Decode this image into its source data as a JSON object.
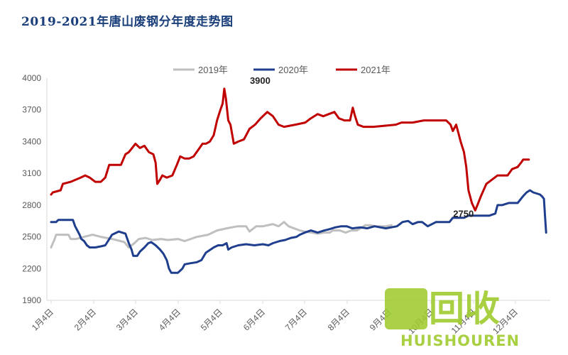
{
  "chart_data": {
    "type": "line",
    "title": "2019-2021年唐山废钢分年度走势图",
    "ylim": [
      1900,
      4000
    ],
    "yticks": [
      1900,
      2200,
      2500,
      2800,
      3100,
      3400,
      3700,
      4000
    ],
    "x_dates": [
      "1月4日",
      "2月4日",
      "3月4日",
      "4月4日",
      "5月4日",
      "6月4日",
      "7月4日",
      "8月4日",
      "9月4日",
      "10月4日",
      "11月4日",
      "12月4日"
    ],
    "legend_position": "top",
    "grid": false,
    "series": [
      {
        "name": "2019年",
        "color": "#bfbfbf",
        "points": [
          [
            1,
            2400
          ],
          [
            4,
            2440
          ],
          [
            6,
            2460
          ],
          [
            10,
            2520
          ],
          [
            20,
            2520
          ],
          [
            32,
            2520
          ],
          [
            36,
            2480
          ],
          [
            46,
            2480
          ],
          [
            60,
            2500
          ],
          [
            75,
            2520
          ],
          [
            90,
            2500
          ],
          [
            110,
            2480
          ],
          [
            125,
            2460
          ],
          [
            132,
            2450
          ],
          [
            140,
            2400
          ],
          [
            150,
            2440
          ],
          [
            158,
            2480
          ],
          [
            170,
            2490
          ],
          [
            182,
            2470
          ],
          [
            198,
            2480
          ],
          [
            210,
            2470
          ],
          [
            228,
            2480
          ],
          [
            240,
            2460
          ],
          [
            262,
            2500
          ],
          [
            282,
            2520
          ],
          [
            298,
            2560
          ],
          [
            315,
            2580
          ],
          [
            335,
            2600
          ],
          [
            350,
            2600
          ],
          [
            356,
            2550
          ],
          [
            368,
            2600
          ],
          [
            380,
            2600
          ],
          [
            398,
            2620
          ],
          [
            408,
            2600
          ],
          [
            418,
            2640
          ],
          [
            426,
            2600
          ],
          [
            446,
            2560
          ],
          [
            454,
            2550
          ],
          [
            468,
            2540
          ],
          [
            478,
            2530
          ],
          [
            490,
            2540
          ],
          [
            500,
            2540
          ],
          [
            505,
            2560
          ],
          [
            518,
            2560
          ],
          [
            528,
            2540
          ],
          [
            538,
            2560
          ],
          [
            548,
            2560
          ],
          [
            558,
            2590
          ],
          [
            563,
            2610
          ],
          [
            572,
            2610
          ],
          [
            582,
            2600
          ],
          [
            600,
            2600
          ],
          [
            610,
            2610
          ]
        ]
      },
      {
        "name": "2020年",
        "color": "#1f3f8e",
        "points": [
          [
            1,
            2640
          ],
          [
            10,
            2640
          ],
          [
            14,
            2660
          ],
          [
            32,
            2660
          ],
          [
            40,
            2660
          ],
          [
            44,
            2600
          ],
          [
            48,
            2560
          ],
          [
            52,
            2520
          ],
          [
            55,
            2480
          ],
          [
            60,
            2460
          ],
          [
            65,
            2420
          ],
          [
            70,
            2400
          ],
          [
            80,
            2400
          ],
          [
            90,
            2410
          ],
          [
            98,
            2420
          ],
          [
            110,
            2520
          ],
          [
            122,
            2550
          ],
          [
            134,
            2530
          ],
          [
            140,
            2440
          ],
          [
            145,
            2380
          ],
          [
            148,
            2320
          ],
          [
            155,
            2320
          ],
          [
            160,
            2360
          ],
          [
            168,
            2400
          ],
          [
            175,
            2440
          ],
          [
            180,
            2450
          ],
          [
            188,
            2420
          ],
          [
            196,
            2380
          ],
          [
            202,
            2340
          ],
          [
            208,
            2280
          ],
          [
            212,
            2200
          ],
          [
            216,
            2160
          ],
          [
            228,
            2160
          ],
          [
            236,
            2200
          ],
          [
            240,
            2240
          ],
          [
            250,
            2250
          ],
          [
            262,
            2260
          ],
          [
            270,
            2280
          ],
          [
            278,
            2350
          ],
          [
            292,
            2400
          ],
          [
            300,
            2420
          ],
          [
            308,
            2420
          ],
          [
            315,
            2440
          ],
          [
            318,
            2380
          ],
          [
            324,
            2400
          ],
          [
            336,
            2420
          ],
          [
            350,
            2430
          ],
          [
            365,
            2420
          ],
          [
            380,
            2430
          ],
          [
            390,
            2420
          ],
          [
            398,
            2440
          ],
          [
            410,
            2460
          ],
          [
            420,
            2470
          ],
          [
            430,
            2490
          ],
          [
            440,
            2500
          ],
          [
            446,
            2520
          ],
          [
            455,
            2540
          ],
          [
            466,
            2560
          ],
          [
            478,
            2540
          ],
          [
            490,
            2560
          ],
          [
            498,
            2570
          ],
          [
            510,
            2590
          ],
          [
            520,
            2600
          ],
          [
            530,
            2600
          ],
          [
            540,
            2580
          ],
          [
            555,
            2590
          ],
          [
            567,
            2580
          ],
          [
            580,
            2600
          ],
          [
            600,
            2580
          ],
          [
            620,
            2600
          ],
          [
            630,
            2640
          ],
          [
            640,
            2650
          ],
          [
            648,
            2620
          ],
          [
            658,
            2640
          ],
          [
            665,
            2640
          ],
          [
            675,
            2600
          ],
          [
            690,
            2640
          ],
          [
            700,
            2640
          ],
          [
            714,
            2640
          ],
          [
            720,
            2680
          ],
          [
            730,
            2680
          ],
          [
            740,
            2680
          ],
          [
            748,
            2700
          ],
          [
            760,
            2700
          ],
          [
            770,
            2700
          ],
          [
            785,
            2700
          ],
          [
            796,
            2720
          ],
          [
            800,
            2800
          ],
          [
            808,
            2800
          ],
          [
            820,
            2820
          ],
          [
            836,
            2820
          ],
          [
            845,
            2880
          ],
          [
            852,
            2920
          ],
          [
            858,
            2940
          ],
          [
            864,
            2920
          ],
          [
            876,
            2900
          ],
          [
            880,
            2880
          ],
          [
            883,
            2860
          ],
          [
            885,
            2700
          ],
          [
            887,
            2540
          ]
        ]
      },
      {
        "name": "2021年",
        "color": "#c00000",
        "points": [
          [
            1,
            2900
          ],
          [
            4,
            2920
          ],
          [
            18,
            2940
          ],
          [
            22,
            3000
          ],
          [
            36,
            3020
          ],
          [
            54,
            3060
          ],
          [
            62,
            3080
          ],
          [
            70,
            3060
          ],
          [
            80,
            3020
          ],
          [
            90,
            3020
          ],
          [
            98,
            3060
          ],
          [
            105,
            3180
          ],
          [
            110,
            3180
          ],
          [
            118,
            3180
          ],
          [
            126,
            3180
          ],
          [
            134,
            3280
          ],
          [
            140,
            3300
          ],
          [
            146,
            3340
          ],
          [
            152,
            3380
          ],
          [
            160,
            3340
          ],
          [
            168,
            3360
          ],
          [
            176,
            3300
          ],
          [
            184,
            3280
          ],
          [
            188,
            3200
          ],
          [
            191,
            3000
          ],
          [
            196,
            3040
          ],
          [
            200,
            3080
          ],
          [
            208,
            3060
          ],
          [
            218,
            3080
          ],
          [
            226,
            3180
          ],
          [
            232,
            3260
          ],
          [
            240,
            3240
          ],
          [
            248,
            3240
          ],
          [
            256,
            3260
          ],
          [
            264,
            3320
          ],
          [
            272,
            3380
          ],
          [
            278,
            3380
          ],
          [
            285,
            3400
          ],
          [
            292,
            3460
          ],
          [
            298,
            3600
          ],
          [
            304,
            3700
          ],
          [
            308,
            3760
          ],
          [
            311,
            3900
          ],
          [
            314,
            3800
          ],
          [
            318,
            3600
          ],
          [
            322,
            3560
          ],
          [
            328,
            3380
          ],
          [
            336,
            3400
          ],
          [
            346,
            3420
          ],
          [
            356,
            3520
          ],
          [
            366,
            3560
          ],
          [
            376,
            3620
          ],
          [
            388,
            3680
          ],
          [
            398,
            3640
          ],
          [
            408,
            3560
          ],
          [
            418,
            3540
          ],
          [
            438,
            3560
          ],
          [
            456,
            3580
          ],
          [
            466,
            3620
          ],
          [
            478,
            3660
          ],
          [
            488,
            3640
          ],
          [
            498,
            3660
          ],
          [
            508,
            3680
          ],
          [
            516,
            3620
          ],
          [
            526,
            3600
          ],
          [
            536,
            3600
          ],
          [
            541,
            3720
          ],
          [
            545,
            3640
          ],
          [
            550,
            3560
          ],
          [
            560,
            3540
          ],
          [
            578,
            3540
          ],
          [
            598,
            3550
          ],
          [
            618,
            3560
          ],
          [
            628,
            3580
          ],
          [
            648,
            3580
          ],
          [
            668,
            3600
          ],
          [
            690,
            3600
          ],
          [
            708,
            3600
          ],
          [
            716,
            3560
          ],
          [
            720,
            3500
          ],
          [
            726,
            3560
          ],
          [
            730,
            3480
          ],
          [
            734,
            3400
          ],
          [
            740,
            3300
          ],
          [
            744,
            3160
          ],
          [
            748,
            2940
          ],
          [
            754,
            2820
          ],
          [
            760,
            2750
          ],
          [
            764,
            2800
          ],
          [
            770,
            2880
          ],
          [
            780,
            3000
          ],
          [
            790,
            3040
          ],
          [
            800,
            3080
          ],
          [
            810,
            3080
          ],
          [
            818,
            3080
          ],
          [
            826,
            3140
          ],
          [
            836,
            3160
          ],
          [
            842,
            3200
          ],
          [
            846,
            3230
          ],
          [
            856,
            3230
          ]
        ]
      }
    ],
    "annotations": [
      {
        "text": "3900",
        "x": 311,
        "y": 3900
      },
      {
        "text": "2750",
        "x": 760,
        "y": 2750
      }
    ],
    "watermark": {
      "main": "回收",
      "sub": "HUISHOUREN"
    }
  }
}
